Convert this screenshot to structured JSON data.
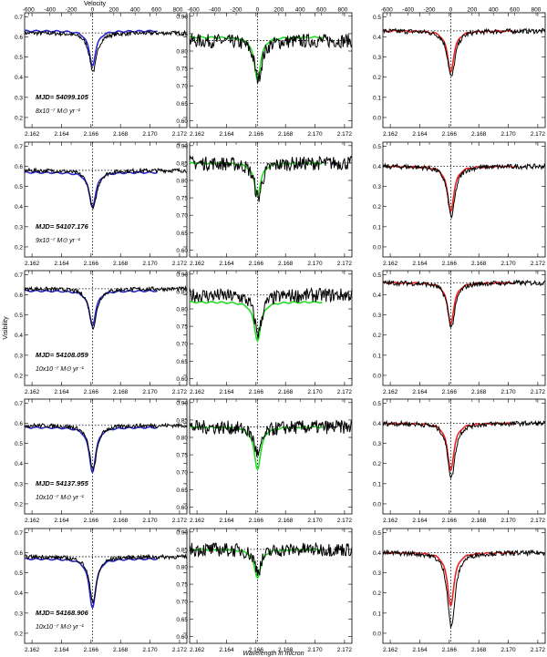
{
  "figure": {
    "column_ylabel": "Visibility",
    "column_xlabel": "Wavelength in micron",
    "top_xlabel": "Velocity"
  },
  "axes": {
    "x_ticks": [
      "2.162",
      "2.164",
      "2.166",
      "2.168",
      "2.170",
      "2.172"
    ],
    "x_tick_values": [
      2.162,
      2.164,
      2.166,
      2.168,
      2.17,
      2.172
    ],
    "xlim": [
      2.1615,
      2.1725
    ],
    "top_ticks": [
      "-600",
      "-400",
      "-200",
      "0",
      "200",
      "400",
      "600",
      "800"
    ],
    "top_tick_values": [
      -600,
      -400,
      -200,
      0,
      200,
      400,
      600,
      800
    ],
    "line_center": 2.1661,
    "col_ylims": [
      [
        0.15,
        0.72
      ],
      [
        0.58,
        0.91
      ],
      [
        -0.05,
        0.52
      ]
    ],
    "col_yticks": [
      [
        0.2,
        0.3,
        0.4,
        0.5,
        0.6,
        0.7
      ],
      [
        0.6,
        0.65,
        0.7,
        0.75,
        0.8,
        0.85,
        0.9
      ],
      [
        0.0,
        0.1,
        0.2,
        0.3,
        0.4,
        0.5
      ]
    ],
    "col_ytick_labels": [
      [
        "0.2",
        "0.3",
        "0.4",
        "0.5",
        "0.6",
        "0.7"
      ],
      [
        "0.60",
        "0.65",
        "0.70",
        "0.75",
        "0.80",
        "0.85",
        "0.90"
      ],
      [
        "0.0",
        "0.1",
        "0.2",
        "0.3",
        "0.4",
        "0.5"
      ]
    ]
  },
  "epochs": [
    {
      "mjd_label": "MJD= 54099.105",
      "mdot_label": "8x10⁻⁷ M⊙ yr⁻¹"
    },
    {
      "mjd_label": "MJD= 54107.176",
      "mdot_label": "9x10⁻⁷ M⊙ yr⁻¹"
    },
    {
      "mjd_label": "MJD= 54108.059",
      "mdot_label": "10x10⁻⁷ M⊙ yr⁻¹"
    },
    {
      "mjd_label": "MJD= 54137.955",
      "mdot_label": "10x10⁻⁷ M⊙ yr⁻¹"
    },
    {
      "mjd_label": "MJD= 54168.906",
      "mdot_label": "10x10⁻⁷ M⊙ yr⁻¹"
    }
  ],
  "colors": {
    "col1_model": "#2a2ad0",
    "col2_model": "#22dd22",
    "col3_model": "#ee2222",
    "data": "#000000"
  },
  "chart_data": {
    "type": "line",
    "xlabel": "Wavelength in micron",
    "ylabel": "Visibility",
    "top_axis_label": "Velocity",
    "panels": [
      {
        "row": 0,
        "col": 0,
        "continuum": 0.62,
        "data_min": 0.43,
        "model_min": 0.46,
        "model_wing": 0.63
      },
      {
        "row": 0,
        "col": 1,
        "continuum": 0.83,
        "data_min": 0.72,
        "model_min": 0.72,
        "model_wing": 0.84
      },
      {
        "row": 0,
        "col": 2,
        "continuum": 0.43,
        "data_min": 0.2,
        "model_min": 0.23,
        "model_wing": 0.43
      },
      {
        "row": 1,
        "col": 0,
        "continuum": 0.58,
        "data_min": 0.39,
        "model_min": 0.4,
        "model_wing": 0.57
      },
      {
        "row": 1,
        "col": 1,
        "continuum": 0.85,
        "data_min": 0.75,
        "model_min": 0.76,
        "model_wing": 0.85
      },
      {
        "row": 1,
        "col": 2,
        "continuum": 0.4,
        "data_min": 0.15,
        "model_min": 0.18,
        "model_wing": 0.4
      },
      {
        "row": 2,
        "col": 0,
        "continuum": 0.63,
        "data_min": 0.44,
        "model_min": 0.45,
        "model_wing": 0.62
      },
      {
        "row": 2,
        "col": 1,
        "continuum": 0.84,
        "data_min": 0.73,
        "model_min": 0.71,
        "model_wing": 0.82
      },
      {
        "row": 2,
        "col": 2,
        "continuum": 0.46,
        "data_min": 0.24,
        "model_min": 0.26,
        "model_wing": 0.46
      },
      {
        "row": 3,
        "col": 0,
        "continuum": 0.59,
        "data_min": 0.37,
        "model_min": 0.36,
        "model_wing": 0.58
      },
      {
        "row": 3,
        "col": 1,
        "continuum": 0.83,
        "data_min": 0.75,
        "model_min": 0.71,
        "model_wing": 0.83
      },
      {
        "row": 3,
        "col": 2,
        "continuum": 0.4,
        "data_min": 0.13,
        "model_min": 0.17,
        "model_wing": 0.4
      },
      {
        "row": 4,
        "col": 0,
        "continuum": 0.58,
        "data_min": 0.36,
        "model_min": 0.33,
        "model_wing": 0.57
      },
      {
        "row": 4,
        "col": 1,
        "continuum": 0.85,
        "data_min": 0.79,
        "model_min": 0.77,
        "model_wing": 0.85
      },
      {
        "row": 4,
        "col": 2,
        "continuum": 0.4,
        "data_min": 0.03,
        "model_min": 0.14,
        "model_wing": 0.4
      }
    ]
  }
}
